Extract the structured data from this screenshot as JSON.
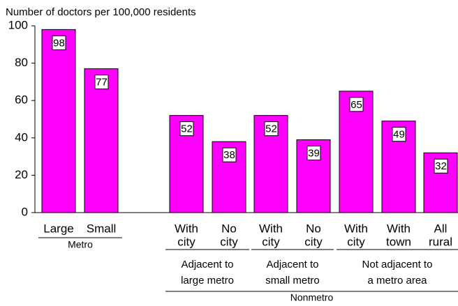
{
  "chart_data": {
    "type": "bar",
    "subtitle": "Number of doctors per 100,000 residents",
    "categories": [
      [
        "Large"
      ],
      [
        "Small"
      ],
      [
        "With",
        "city"
      ],
      [
        "No",
        "city"
      ],
      [
        "With",
        "city"
      ],
      [
        "No",
        "city"
      ],
      [
        "With",
        "city"
      ],
      [
        "With",
        "town"
      ],
      [
        "All",
        "rural"
      ]
    ],
    "values": [
      98,
      77,
      52,
      38,
      52,
      39,
      65,
      49,
      32
    ],
    "color": "#ff00ff",
    "ylim": [
      0,
      100
    ],
    "yticks": [
      0,
      20,
      40,
      60,
      80,
      100
    ],
    "groups": [
      [
        "Metro"
      ],
      [
        "Adjacent to",
        "large metro"
      ],
      [
        "Adjacent to",
        "small metro"
      ],
      [
        "Not adjacent to",
        "a metro area"
      ],
      [
        "Nonmetro"
      ]
    ]
  }
}
